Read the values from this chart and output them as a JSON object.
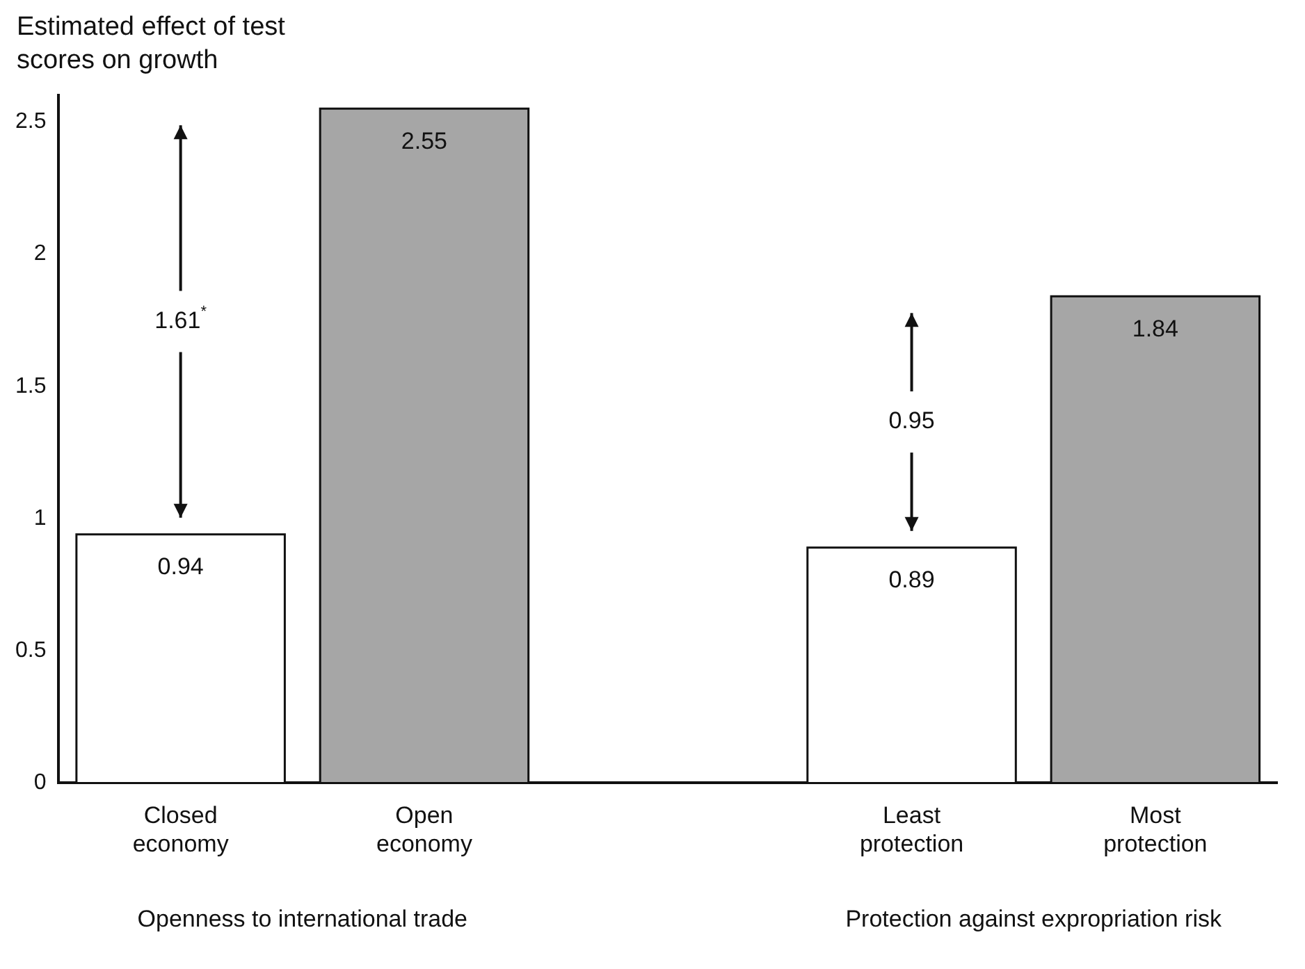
{
  "chart_data": {
    "type": "bar",
    "ylabel": "Estimated effect of test scores on growth",
    "categories": [
      "Closed economy",
      "Open economy",
      null,
      "Least protection",
      "Most protection"
    ],
    "series": [
      {
        "color": "#ffffff",
        "values": [
          0.94,
          null,
          null,
          0.89,
          null
        ]
      },
      {
        "color": "#a6a6a6",
        "values": [
          null,
          2.55,
          null,
          null,
          1.84
        ]
      }
    ],
    "ylim": [
      0,
      2.6
    ],
    "yticks": [
      0,
      0.5,
      1,
      1.5,
      2,
      2.5
    ],
    "grid": false,
    "legend": false,
    "data_labels": true,
    "annotations": [
      "1.61$^{*}$",
      "0.95",
      "Openness to international trade",
      "Protection against expropriation risk"
    ]
  }
}
